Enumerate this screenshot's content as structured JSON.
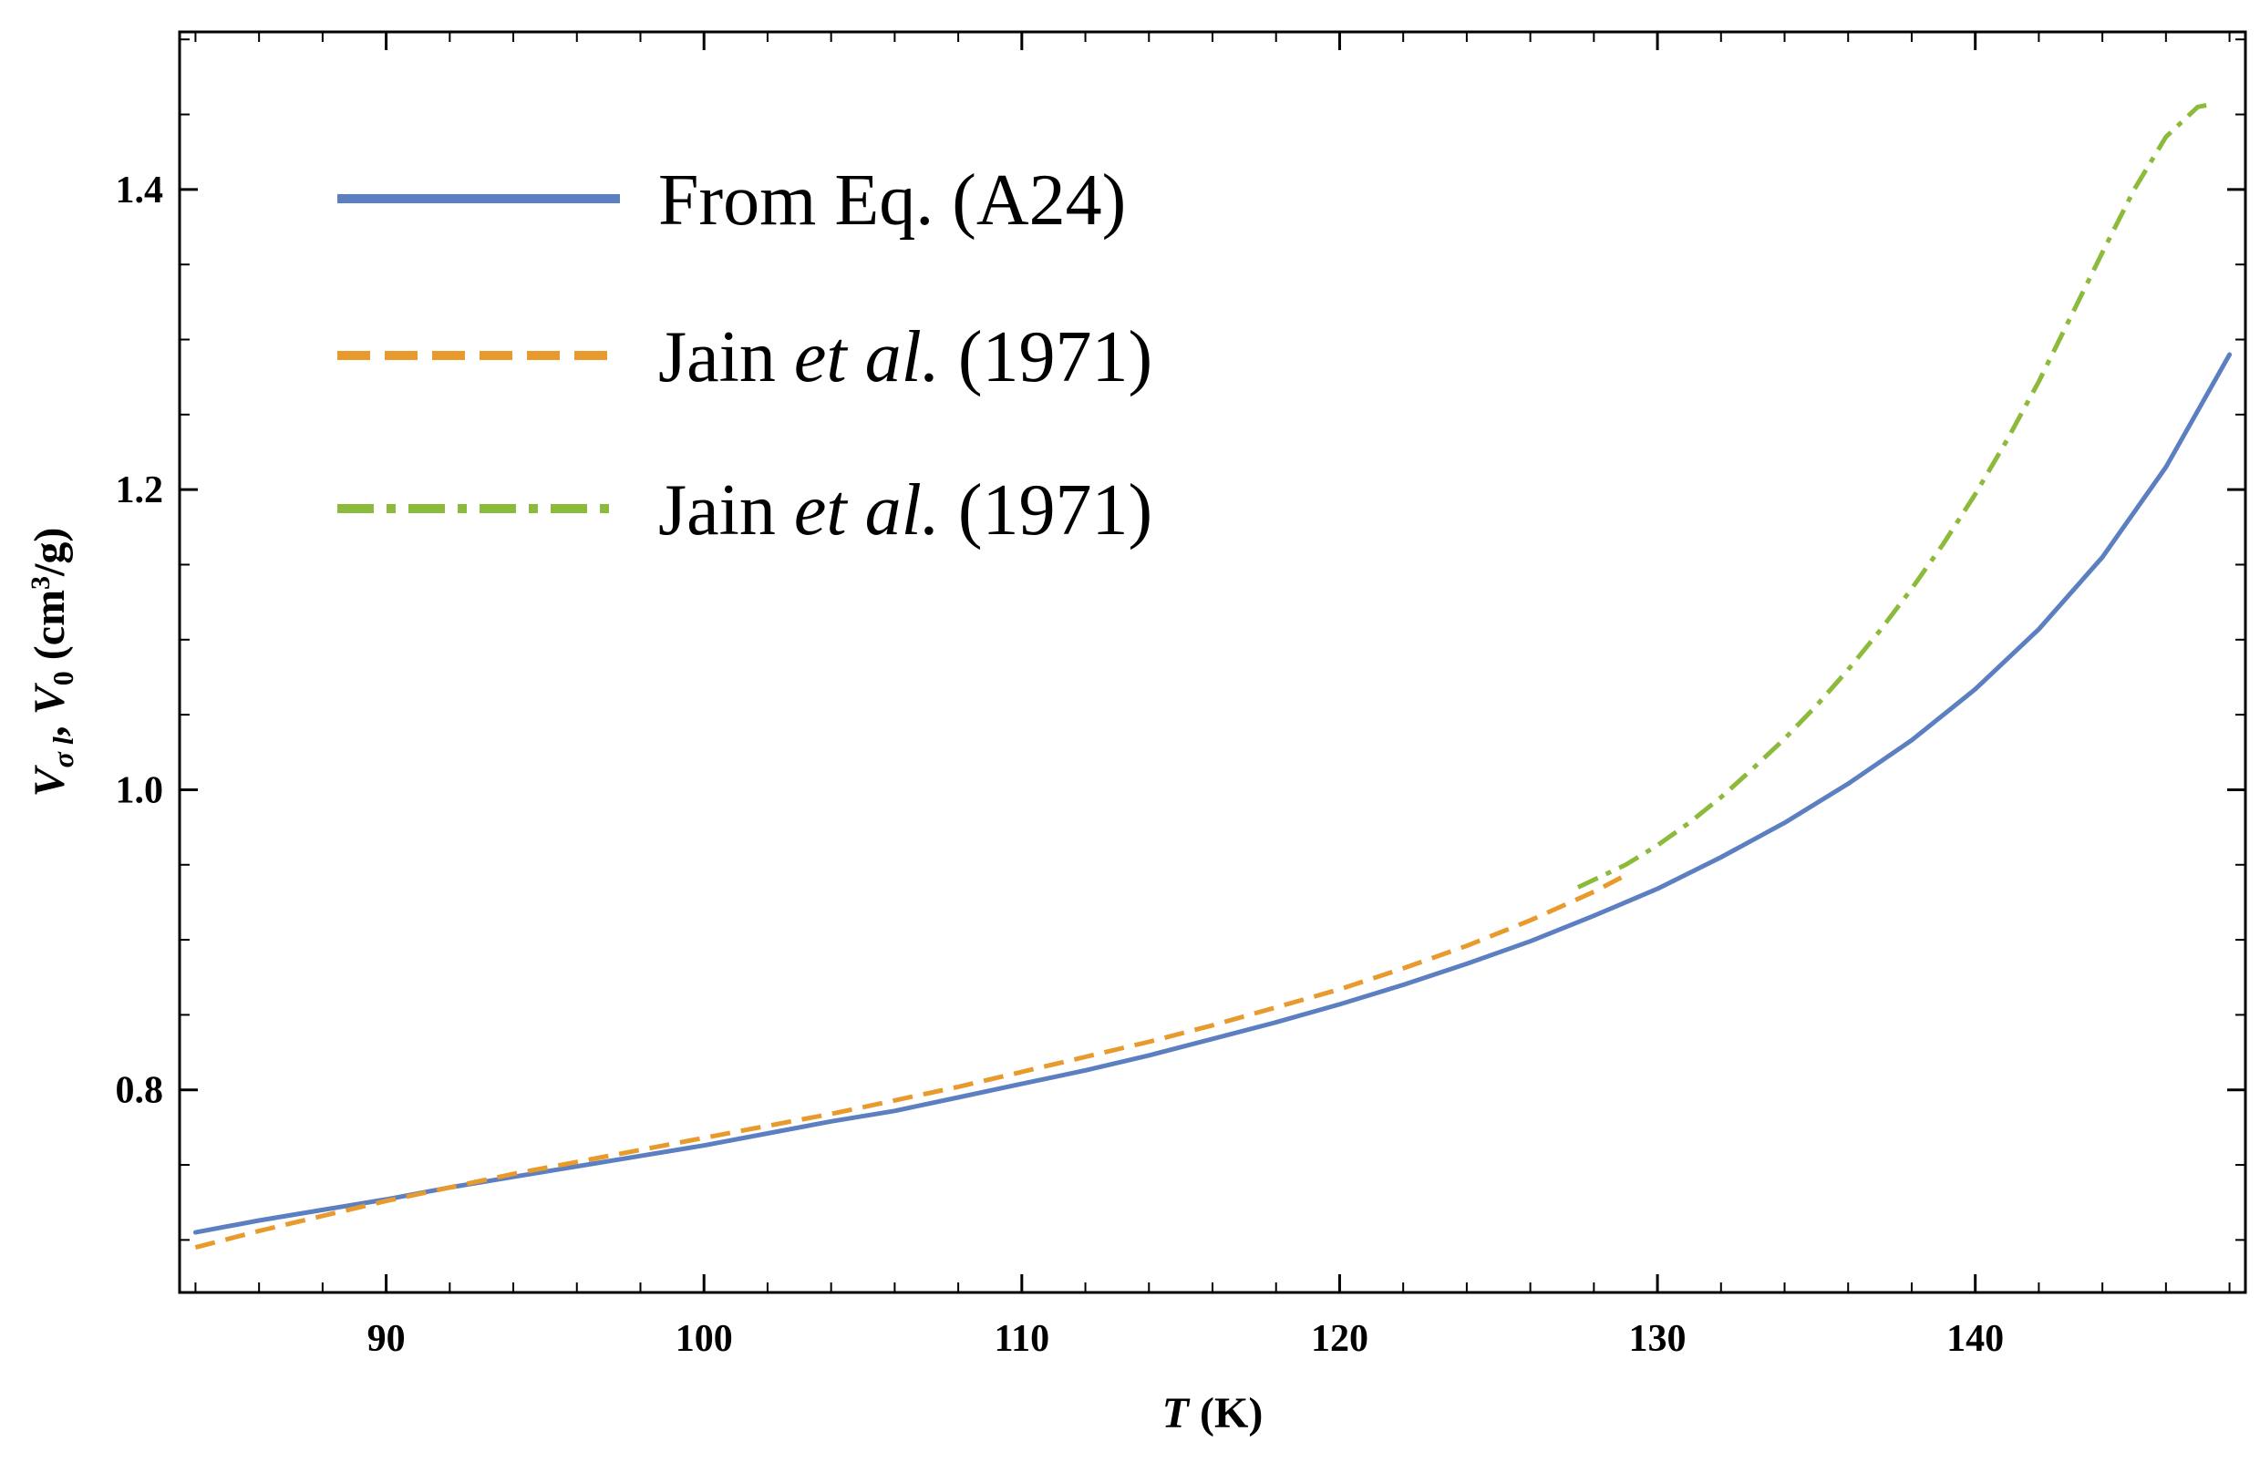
{
  "chart_data": {
    "type": "line",
    "title": "",
    "xlabel": {
      "var": "T",
      "unit": " (K)"
    },
    "ylabel": {
      "v1": "V",
      "sub1": "σ l",
      "sep": ", ",
      "v2": "V",
      "sub2": "0",
      "unit_pre": " (cm",
      "unit_sup": "3",
      "unit_post": "/g)"
    },
    "xlim": [
      83.5,
      148.5
    ],
    "ylim": [
      0.665,
      1.505
    ],
    "xticks": [
      90,
      100,
      110,
      120,
      130,
      140
    ],
    "xtick_labels": [
      "90",
      "100",
      "110",
      "120",
      "130",
      "140"
    ],
    "yticks": [
      0.8,
      1.0,
      1.2,
      1.4
    ],
    "ytick_labels": [
      "0.8",
      "1.0",
      "1.2",
      "1.4"
    ],
    "grid": false,
    "legend_position": "top-left",
    "series": [
      {
        "name": "From Eq. (A24)",
        "label_parts": [
          "From Eq. (A24)"
        ],
        "style": "solid",
        "color": "#5b7fc1",
        "x": [
          84,
          86,
          88,
          90,
          92,
          94,
          96,
          98,
          100,
          102,
          104,
          106,
          108,
          110,
          112,
          114,
          116,
          118,
          120,
          122,
          124,
          126,
          128,
          130,
          132,
          134,
          136,
          138,
          140,
          142,
          144,
          146,
          148
        ],
        "y": [
          0.705,
          0.713,
          0.72,
          0.727,
          0.735,
          0.742,
          0.749,
          0.756,
          0.763,
          0.771,
          0.779,
          0.786,
          0.795,
          0.804,
          0.813,
          0.823,
          0.834,
          0.845,
          0.857,
          0.87,
          0.884,
          0.899,
          0.916,
          0.934,
          0.955,
          0.978,
          1.004,
          1.033,
          1.067,
          1.107,
          1.155,
          1.215,
          1.29
        ]
      },
      {
        "name": "Jain et al. (1971)",
        "label_parts": [
          "Jain ",
          "et al.",
          " (1971)"
        ],
        "style": "dashed",
        "color": "#e89a2c",
        "x": [
          84,
          86,
          88,
          90,
          92,
          94,
          96,
          98,
          100,
          102,
          104,
          106,
          108,
          110,
          112,
          114,
          116,
          118,
          120,
          122,
          124,
          126,
          128,
          129
        ],
        "y": [
          0.695,
          0.706,
          0.716,
          0.726,
          0.735,
          0.744,
          0.752,
          0.76,
          0.768,
          0.776,
          0.784,
          0.793,
          0.802,
          0.812,
          0.822,
          0.832,
          0.843,
          0.855,
          0.867,
          0.881,
          0.896,
          0.913,
          0.932,
          0.943
        ]
      },
      {
        "name": "Jain et al. (1971)",
        "label_parts": [
          "Jain ",
          "et al.",
          " (1971)"
        ],
        "style": "dash-dot",
        "color": "#8cba3a",
        "x": [
          127.5,
          129,
          130,
          131,
          132,
          133,
          134,
          135,
          136,
          137,
          138,
          139,
          140,
          141,
          142,
          143,
          144,
          145,
          146,
          147,
          147.5
        ],
        "y": [
          0.935,
          0.95,
          0.963,
          0.978,
          0.995,
          1.014,
          1.034,
          1.056,
          1.08,
          1.106,
          1.134,
          1.164,
          1.197,
          1.233,
          1.272,
          1.315,
          1.358,
          1.4,
          1.435,
          1.455,
          1.457
        ]
      }
    ]
  }
}
